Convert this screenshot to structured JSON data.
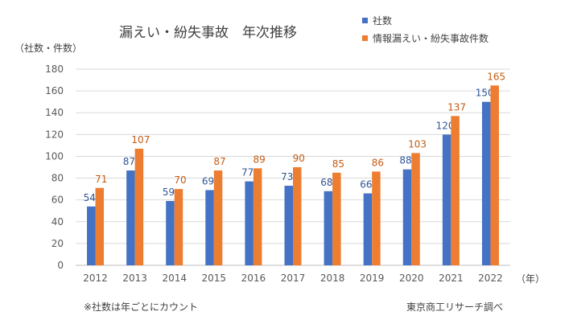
{
  "chart_data": {
    "type": "bar",
    "title": "漏えい・紛失事故　年次推移",
    "ylabel": "（社数・件数）",
    "xunit": "（年）",
    "categories": [
      "2012",
      "2013",
      "2014",
      "2015",
      "2016",
      "2017",
      "2018",
      "2019",
      "2020",
      "2021",
      "2022"
    ],
    "series": [
      {
        "name": "社数",
        "color": "#4472c4",
        "label_color": "#2f5597",
        "values": [
          54,
          87,
          59,
          69,
          77,
          73,
          68,
          66,
          88,
          120,
          150
        ]
      },
      {
        "name": "情報漏えい・紛失事故件数",
        "color": "#ed7d31",
        "label_color": "#c55a11",
        "values": [
          71,
          107,
          70,
          87,
          89,
          90,
          85,
          86,
          103,
          137,
          165
        ]
      }
    ],
    "ylim": [
      0,
      180
    ],
    "yticks": [
      0,
      20,
      40,
      60,
      80,
      100,
      120,
      140,
      160,
      180
    ],
    "grid": true,
    "legend": "top-right"
  },
  "footnote": "※社数は年ごとにカウント",
  "source": "東京商工リサーチ調べ"
}
